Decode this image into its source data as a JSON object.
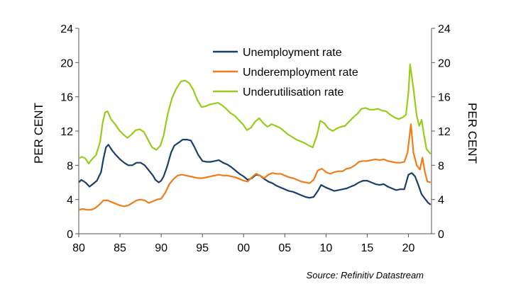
{
  "chart_data": {
    "type": "line",
    "ylabel_left": "PER CENT",
    "ylabel_right": "PER CENT",
    "ylim": [
      0,
      24
    ],
    "yticks": [
      "0",
      "4",
      "8",
      "12",
      "16",
      "20",
      "24"
    ],
    "xlim": [
      1980,
      2022.8
    ],
    "xticks": [
      {
        "value": 1980,
        "label": "80"
      },
      {
        "value": 1985,
        "label": "85"
      },
      {
        "value": 1990,
        "label": "90"
      },
      {
        "value": 1995,
        "label": "95"
      },
      {
        "value": 2000,
        "label": "00"
      },
      {
        "value": 2005,
        "label": "05"
      },
      {
        "value": 2010,
        "label": "10"
      },
      {
        "value": 2015,
        "label": "15"
      },
      {
        "value": 2020,
        "label": "20"
      }
    ],
    "grid": false,
    "legend_position": "top-center",
    "source": "Source: Refinitiv Datastream",
    "series": [
      {
        "name": "Unemployment rate",
        "color": "#1b3f6b",
        "points": [
          [
            1980.0,
            6.0
          ],
          [
            1980.3,
            6.3
          ],
          [
            1980.8,
            6.0
          ],
          [
            1981.3,
            5.5
          ],
          [
            1981.7,
            5.8
          ],
          [
            1982.2,
            6.2
          ],
          [
            1982.7,
            7.2
          ],
          [
            1983.0,
            8.8
          ],
          [
            1983.3,
            10.1
          ],
          [
            1983.6,
            10.4
          ],
          [
            1984.0,
            9.8
          ],
          [
            1984.5,
            9.2
          ],
          [
            1985.0,
            8.7
          ],
          [
            1985.5,
            8.3
          ],
          [
            1986.0,
            8.0
          ],
          [
            1986.5,
            8.0
          ],
          [
            1987.0,
            8.3
          ],
          [
            1987.5,
            8.3
          ],
          [
            1988.0,
            8.0
          ],
          [
            1988.5,
            7.4
          ],
          [
            1989.0,
            6.8
          ],
          [
            1989.3,
            6.3
          ],
          [
            1989.7,
            6.0
          ],
          [
            1990.0,
            6.2
          ],
          [
            1990.3,
            6.7
          ],
          [
            1990.7,
            7.8
          ],
          [
            1991.2,
            9.5
          ],
          [
            1991.6,
            10.3
          ],
          [
            1992.2,
            10.7
          ],
          [
            1992.6,
            11.0
          ],
          [
            1993.1,
            11.0
          ],
          [
            1993.6,
            10.9
          ],
          [
            1994.0,
            10.2
          ],
          [
            1994.5,
            9.2
          ],
          [
            1995.0,
            8.5
          ],
          [
            1995.5,
            8.4
          ],
          [
            1996.0,
            8.4
          ],
          [
            1996.5,
            8.5
          ],
          [
            1997.0,
            8.6
          ],
          [
            1997.5,
            8.3
          ],
          [
            1998.0,
            8.1
          ],
          [
            1998.5,
            7.8
          ],
          [
            1999.0,
            7.4
          ],
          [
            1999.5,
            7.0
          ],
          [
            2000.0,
            6.7
          ],
          [
            2000.5,
            6.3
          ],
          [
            2001.0,
            6.5
          ],
          [
            2001.5,
            6.9
          ],
          [
            2002.0,
            6.8
          ],
          [
            2002.5,
            6.4
          ],
          [
            2003.0,
            6.1
          ],
          [
            2003.5,
            5.9
          ],
          [
            2004.0,
            5.6
          ],
          [
            2004.5,
            5.4
          ],
          [
            2005.0,
            5.2
          ],
          [
            2005.5,
            5.0
          ],
          [
            2006.0,
            4.9
          ],
          [
            2006.5,
            4.7
          ],
          [
            2007.0,
            4.5
          ],
          [
            2007.5,
            4.3
          ],
          [
            2008.0,
            4.2
          ],
          [
            2008.5,
            4.3
          ],
          [
            2009.0,
            5.0
          ],
          [
            2009.4,
            5.7
          ],
          [
            2010.0,
            5.4
          ],
          [
            2010.5,
            5.2
          ],
          [
            2011.0,
            5.0
          ],
          [
            2011.5,
            5.1
          ],
          [
            2012.0,
            5.2
          ],
          [
            2012.5,
            5.3
          ],
          [
            2013.0,
            5.5
          ],
          [
            2013.5,
            5.7
          ],
          [
            2014.0,
            6.0
          ],
          [
            2014.5,
            6.2
          ],
          [
            2015.0,
            6.2
          ],
          [
            2015.5,
            6.0
          ],
          [
            2016.0,
            5.8
          ],
          [
            2016.5,
            5.7
          ],
          [
            2017.0,
            5.8
          ],
          [
            2017.5,
            5.5
          ],
          [
            2018.0,
            5.3
          ],
          [
            2018.5,
            5.1
          ],
          [
            2019.0,
            5.2
          ],
          [
            2019.5,
            5.2
          ],
          [
            2020.0,
            6.9
          ],
          [
            2020.4,
            7.1
          ],
          [
            2020.8,
            6.7
          ],
          [
            2021.2,
            5.7
          ],
          [
            2021.6,
            4.6
          ],
          [
            2022.0,
            4.1
          ],
          [
            2022.4,
            3.6
          ],
          [
            2022.7,
            3.4
          ]
        ]
      },
      {
        "name": "Underemployment rate",
        "color": "#f07d1a",
        "points": [
          [
            1980.0,
            2.8
          ],
          [
            1980.5,
            2.9
          ],
          [
            1981.0,
            2.8
          ],
          [
            1981.5,
            2.8
          ],
          [
            1982.0,
            3.0
          ],
          [
            1982.5,
            3.4
          ],
          [
            1983.0,
            3.9
          ],
          [
            1983.5,
            3.9
          ],
          [
            1984.0,
            3.7
          ],
          [
            1984.5,
            3.5
          ],
          [
            1985.0,
            3.3
          ],
          [
            1985.5,
            3.2
          ],
          [
            1986.0,
            3.3
          ],
          [
            1986.5,
            3.6
          ],
          [
            1987.0,
            3.9
          ],
          [
            1987.5,
            4.0
          ],
          [
            1988.0,
            3.9
          ],
          [
            1988.5,
            3.6
          ],
          [
            1989.0,
            3.8
          ],
          [
            1989.5,
            4.0
          ],
          [
            1990.0,
            4.1
          ],
          [
            1990.5,
            4.8
          ],
          [
            1991.0,
            5.8
          ],
          [
            1991.5,
            6.4
          ],
          [
            1992.0,
            6.8
          ],
          [
            1992.5,
            6.9
          ],
          [
            1993.0,
            6.8
          ],
          [
            1993.5,
            6.7
          ],
          [
            1994.0,
            6.6
          ],
          [
            1994.5,
            6.5
          ],
          [
            1995.0,
            6.5
          ],
          [
            1995.5,
            6.6
          ],
          [
            1996.0,
            6.7
          ],
          [
            1996.5,
            6.8
          ],
          [
            1997.0,
            6.9
          ],
          [
            1997.5,
            6.8
          ],
          [
            1998.0,
            6.8
          ],
          [
            1998.5,
            6.7
          ],
          [
            1999.0,
            6.6
          ],
          [
            1999.5,
            6.4
          ],
          [
            2000.0,
            6.2
          ],
          [
            2000.5,
            6.1
          ],
          [
            2001.0,
            6.6
          ],
          [
            2001.5,
            7.0
          ],
          [
            2002.0,
            6.8
          ],
          [
            2002.5,
            6.5
          ],
          [
            2003.0,
            6.9
          ],
          [
            2003.5,
            7.1
          ],
          [
            2004.0,
            7.0
          ],
          [
            2004.5,
            7.0
          ],
          [
            2005.0,
            6.8
          ],
          [
            2005.5,
            6.6
          ],
          [
            2006.0,
            6.5
          ],
          [
            2006.5,
            6.3
          ],
          [
            2007.0,
            6.1
          ],
          [
            2007.5,
            6.0
          ],
          [
            2008.0,
            5.9
          ],
          [
            2008.5,
            6.3
          ],
          [
            2009.0,
            7.4
          ],
          [
            2009.5,
            7.6
          ],
          [
            2010.0,
            7.2
          ],
          [
            2010.5,
            7.0
          ],
          [
            2011.0,
            7.2
          ],
          [
            2011.5,
            7.3
          ],
          [
            2012.0,
            7.3
          ],
          [
            2012.5,
            7.6
          ],
          [
            2013.0,
            7.7
          ],
          [
            2013.5,
            8.0
          ],
          [
            2014.0,
            8.4
          ],
          [
            2014.5,
            8.5
          ],
          [
            2015.0,
            8.5
          ],
          [
            2015.5,
            8.6
          ],
          [
            2016.0,
            8.7
          ],
          [
            2016.5,
            8.6
          ],
          [
            2017.0,
            8.7
          ],
          [
            2017.5,
            8.5
          ],
          [
            2018.0,
            8.4
          ],
          [
            2018.5,
            8.3
          ],
          [
            2019.0,
            8.3
          ],
          [
            2019.5,
            8.4
          ],
          [
            2019.9,
            9.5
          ],
          [
            2020.3,
            12.8
          ],
          [
            2020.6,
            9.5
          ],
          [
            2021.0,
            8.0
          ],
          [
            2021.4,
            7.5
          ],
          [
            2021.7,
            8.9
          ],
          [
            2022.0,
            7.2
          ],
          [
            2022.3,
            6.1
          ],
          [
            2022.7,
            6.0
          ]
        ]
      },
      {
        "name": "Underutilisation rate",
        "color": "#99cc1a",
        "points": [
          [
            1980.0,
            8.8
          ],
          [
            1980.4,
            9.0
          ],
          [
            1980.8,
            8.8
          ],
          [
            1981.2,
            8.2
          ],
          [
            1981.6,
            8.7
          ],
          [
            1982.1,
            9.2
          ],
          [
            1982.6,
            10.8
          ],
          [
            1982.9,
            13.0
          ],
          [
            1983.2,
            14.2
          ],
          [
            1983.5,
            14.3
          ],
          [
            1983.9,
            13.4
          ],
          [
            1984.4,
            12.8
          ],
          [
            1984.9,
            12.1
          ],
          [
            1985.4,
            11.6
          ],
          [
            1985.9,
            11.2
          ],
          [
            1986.4,
            11.6
          ],
          [
            1986.9,
            12.1
          ],
          [
            1987.4,
            12.2
          ],
          [
            1987.9,
            11.9
          ],
          [
            1988.4,
            11.0
          ],
          [
            1988.9,
            10.1
          ],
          [
            1989.4,
            9.8
          ],
          [
            1989.9,
            10.3
          ],
          [
            1990.3,
            11.5
          ],
          [
            1990.8,
            14.0
          ],
          [
            1991.3,
            15.8
          ],
          [
            1991.8,
            16.9
          ],
          [
            1992.4,
            17.8
          ],
          [
            1992.9,
            17.9
          ],
          [
            1993.4,
            17.6
          ],
          [
            1993.9,
            16.8
          ],
          [
            1994.4,
            15.6
          ],
          [
            1994.9,
            14.8
          ],
          [
            1995.4,
            14.9
          ],
          [
            1995.9,
            15.1
          ],
          [
            1996.4,
            15.2
          ],
          [
            1996.9,
            15.3
          ],
          [
            1997.4,
            15.0
          ],
          [
            1997.9,
            14.6
          ],
          [
            1998.4,
            14.1
          ],
          [
            1998.9,
            13.8
          ],
          [
            1999.4,
            13.3
          ],
          [
            1999.9,
            12.8
          ],
          [
            2000.4,
            12.1
          ],
          [
            2000.9,
            12.4
          ],
          [
            2001.4,
            13.1
          ],
          [
            2001.9,
            13.5
          ],
          [
            2002.4,
            12.9
          ],
          [
            2002.9,
            12.5
          ],
          [
            2003.4,
            12.8
          ],
          [
            2003.9,
            12.6
          ],
          [
            2004.4,
            12.4
          ],
          [
            2004.9,
            12.0
          ],
          [
            2005.4,
            11.6
          ],
          [
            2005.9,
            11.3
          ],
          [
            2006.4,
            11.0
          ],
          [
            2006.9,
            10.8
          ],
          [
            2007.4,
            10.6
          ],
          [
            2007.9,
            10.3
          ],
          [
            2008.4,
            10.1
          ],
          [
            2008.9,
            11.5
          ],
          [
            2009.3,
            13.2
          ],
          [
            2009.8,
            12.9
          ],
          [
            2010.3,
            12.3
          ],
          [
            2010.8,
            12.0
          ],
          [
            2011.3,
            12.3
          ],
          [
            2011.8,
            12.5
          ],
          [
            2012.3,
            12.6
          ],
          [
            2012.8,
            13.1
          ],
          [
            2013.3,
            13.6
          ],
          [
            2013.8,
            14.0
          ],
          [
            2014.3,
            14.6
          ],
          [
            2014.8,
            14.7
          ],
          [
            2015.3,
            14.5
          ],
          [
            2015.8,
            14.5
          ],
          [
            2016.3,
            14.6
          ],
          [
            2016.8,
            14.4
          ],
          [
            2017.3,
            14.3
          ],
          [
            2017.8,
            13.9
          ],
          [
            2018.3,
            13.6
          ],
          [
            2018.8,
            13.4
          ],
          [
            2019.3,
            13.6
          ],
          [
            2019.7,
            13.9
          ],
          [
            2020.0,
            16.5
          ],
          [
            2020.2,
            19.8
          ],
          [
            2020.6,
            17.0
          ],
          [
            2021.0,
            13.8
          ],
          [
            2021.3,
            12.6
          ],
          [
            2021.6,
            13.3
          ],
          [
            2021.9,
            11.5
          ],
          [
            2022.2,
            9.9
          ],
          [
            2022.7,
            9.3
          ]
        ]
      }
    ]
  }
}
